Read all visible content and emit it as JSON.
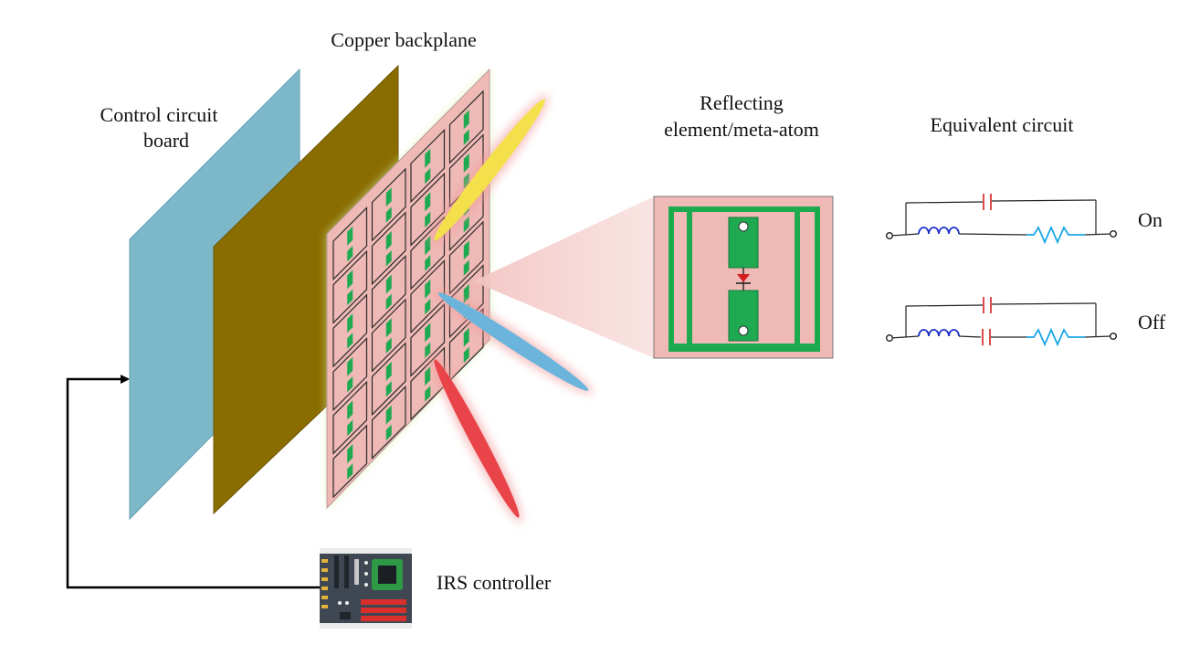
{
  "labels": {
    "copper_backplane": "Copper backplane",
    "control_board_line1": "Control circuit",
    "control_board_line2": "board",
    "element_line1": "Reflecting",
    "element_line2": "element/meta-atom",
    "equivalent_circuit": "Equivalent circuit",
    "state_on": "On",
    "state_off": "Off",
    "controller": "IRS controller"
  },
  "colors": {
    "control_board": "#7db8c9",
    "copper_backplane": "#8a6d00",
    "metasurface": "#efb9b5",
    "element_green": "#1faa52",
    "beam_yellow": "#f4e04a",
    "beam_blue": "#6bb5dc",
    "beam_red": "#e8444a",
    "inductor": "#1a2fc9",
    "capacitor": "#d21e1e",
    "resistor": "#19a6e6"
  },
  "grid": {
    "rows": 6,
    "cols": 4
  }
}
